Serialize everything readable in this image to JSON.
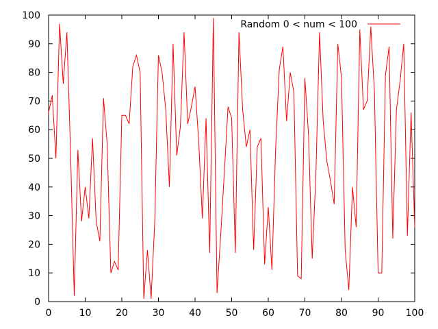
{
  "chart_data": {
    "type": "line",
    "title": "",
    "xlabel": "",
    "ylabel": "",
    "xlim": [
      0,
      100
    ],
    "ylim": [
      0,
      100
    ],
    "grid": false,
    "legend_position": "top-right",
    "x_ticks": [
      "0",
      "10",
      "20",
      "30",
      "40",
      "50",
      "60",
      "70",
      "80",
      "90",
      "100"
    ],
    "y_ticks": [
      "0",
      "10",
      "20",
      "30",
      "40",
      "50",
      "60",
      "70",
      "80",
      "90",
      "100"
    ],
    "series": [
      {
        "name": "Random 0 < num < 100",
        "color": "#ff0000",
        "x": [
          0,
          1,
          2,
          3,
          4,
          5,
          6,
          7,
          8,
          9,
          10,
          11,
          12,
          13,
          14,
          15,
          16,
          17,
          18,
          19,
          20,
          21,
          22,
          23,
          24,
          25,
          26,
          27,
          28,
          29,
          30,
          31,
          32,
          33,
          34,
          35,
          36,
          37,
          38,
          39,
          40,
          41,
          42,
          43,
          44,
          45,
          46,
          47,
          48,
          49,
          50,
          51,
          52,
          53,
          54,
          55,
          56,
          57,
          58,
          59,
          60,
          61,
          62,
          63,
          64,
          65,
          66,
          67,
          68,
          69,
          70,
          71,
          72,
          73,
          74,
          75,
          76,
          77,
          78,
          79,
          80,
          81,
          82,
          83,
          84,
          85,
          86,
          87,
          88,
          89,
          90,
          91,
          92,
          93,
          94,
          95,
          96,
          97,
          98,
          99,
          100
        ],
        "y": [
          66,
          72,
          50,
          97,
          76,
          94,
          52,
          2,
          53,
          28,
          40,
          29,
          57,
          28,
          21,
          71,
          55,
          10,
          14,
          11,
          65,
          65,
          62,
          82,
          86,
          80,
          1,
          18,
          1,
          28,
          86,
          80,
          67,
          40,
          90,
          51,
          61,
          94,
          62,
          68,
          75,
          56,
          29,
          64,
          17,
          99,
          3,
          23,
          45,
          68,
          64,
          17,
          94,
          67,
          54,
          60,
          18,
          54,
          57,
          13,
          33,
          11,
          53,
          81,
          89,
          63,
          80,
          73,
          9,
          8,
          78,
          58,
          15,
          44,
          94,
          63,
          49,
          42,
          34,
          90,
          78,
          18,
          4,
          40,
          26,
          95,
          67,
          70,
          96,
          73,
          10,
          10,
          79,
          89,
          22,
          67,
          77,
          90,
          23,
          66,
          26
        ]
      }
    ]
  }
}
